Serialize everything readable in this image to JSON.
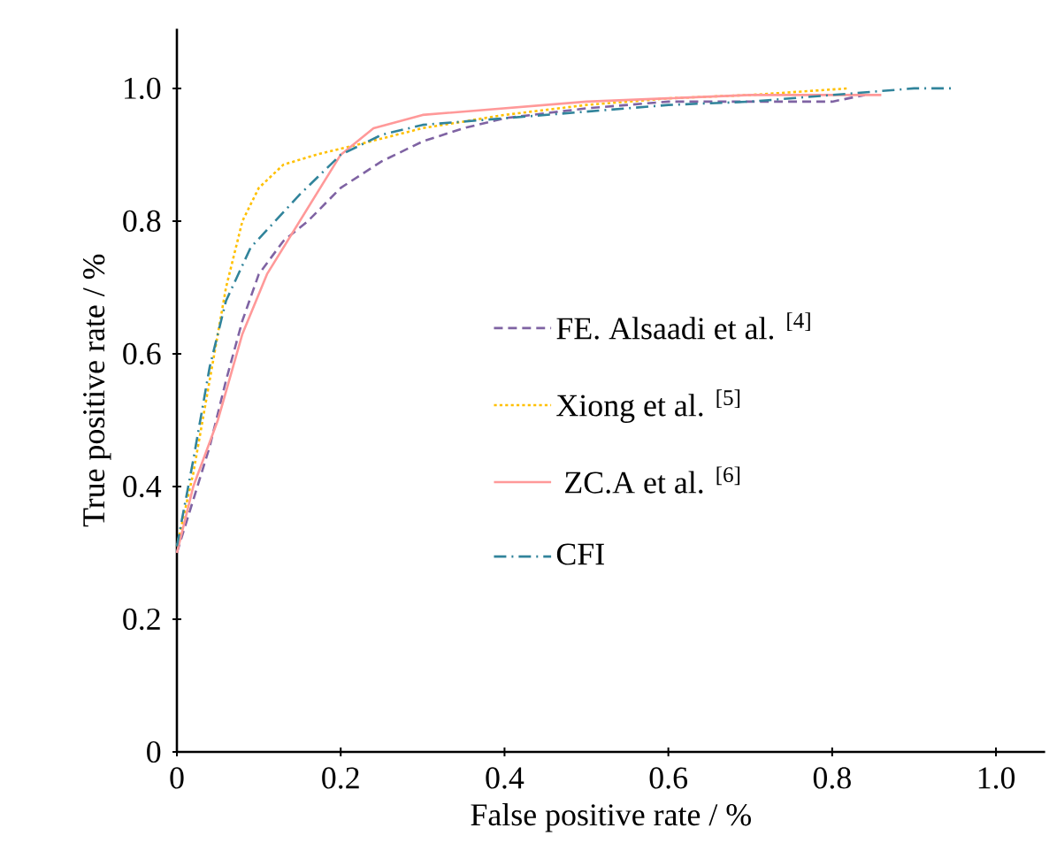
{
  "chart_data": {
    "type": "line",
    "xlabel": "False  positive rate / %",
    "ylabel": "True positive rate / %",
    "xlim": [
      0,
      1.06
    ],
    "ylim": [
      0,
      1.09
    ],
    "xticks": [
      {
        "value": 0,
        "label": "0"
      },
      0.2,
      0.4,
      0.6,
      0.8,
      {
        "value": 1,
        "label": "1.0"
      }
    ],
    "yticks": [
      {
        "value": 0,
        "label": "0"
      },
      0.2,
      0.4,
      0.6,
      0.8,
      {
        "value": 1,
        "label": "1.0"
      }
    ],
    "grid": false,
    "legend": "center",
    "marker": "none",
    "series": [
      {
        "name": "FE. Alsaadi et al. $^{[4]}$",
        "color": "#7f63a3",
        "line_style": "dashed",
        "x": [
          0,
          0.02,
          0.04,
          0.06,
          0.08,
          0.1,
          0.13,
          0.16,
          0.2,
          0.25,
          0.3,
          0.35,
          0.4,
          0.5,
          0.6,
          0.7,
          0.8,
          0.84
        ],
        "values": [
          0.3,
          0.38,
          0.46,
          0.56,
          0.65,
          0.72,
          0.77,
          0.8,
          0.85,
          0.89,
          0.92,
          0.94,
          0.955,
          0.97,
          0.98,
          0.98,
          0.98,
          0.99
        ]
      },
      {
        "name": "Xiong et al. $^{[5]}$",
        "color": "#ffc000",
        "line_style": "dotted",
        "x": [
          0,
          0.02,
          0.04,
          0.06,
          0.08,
          0.1,
          0.13,
          0.17,
          0.22,
          0.3,
          0.4,
          0.5,
          0.6,
          0.7,
          0.82
        ],
        "values": [
          0.31,
          0.42,
          0.56,
          0.7,
          0.8,
          0.85,
          0.885,
          0.9,
          0.915,
          0.94,
          0.96,
          0.975,
          0.985,
          0.99,
          1.0
        ]
      },
      {
        "name": " ZC.A et al. $^{[6]}$",
        "color": "#ff9999",
        "line_style": "solid",
        "x": [
          0,
          0.02,
          0.05,
          0.08,
          0.11,
          0.14,
          0.17,
          0.2,
          0.24,
          0.3,
          0.4,
          0.5,
          0.6,
          0.7,
          0.8,
          0.86
        ],
        "values": [
          0.3,
          0.4,
          0.5,
          0.63,
          0.72,
          0.78,
          0.84,
          0.9,
          0.94,
          0.96,
          0.97,
          0.98,
          0.985,
          0.99,
          0.99,
          0.99
        ]
      },
      {
        "name": "CFI",
        "color": "#31849b",
        "line_style": "dashdot",
        "x": [
          0,
          0.02,
          0.04,
          0.06,
          0.09,
          0.12,
          0.15,
          0.2,
          0.25,
          0.3,
          0.4,
          0.5,
          0.6,
          0.7,
          0.8,
          0.9,
          0.95
        ],
        "values": [
          0.31,
          0.44,
          0.58,
          0.68,
          0.76,
          0.8,
          0.84,
          0.9,
          0.93,
          0.945,
          0.955,
          0.965,
          0.975,
          0.98,
          0.99,
          1.0,
          1.0
        ]
      }
    ]
  }
}
